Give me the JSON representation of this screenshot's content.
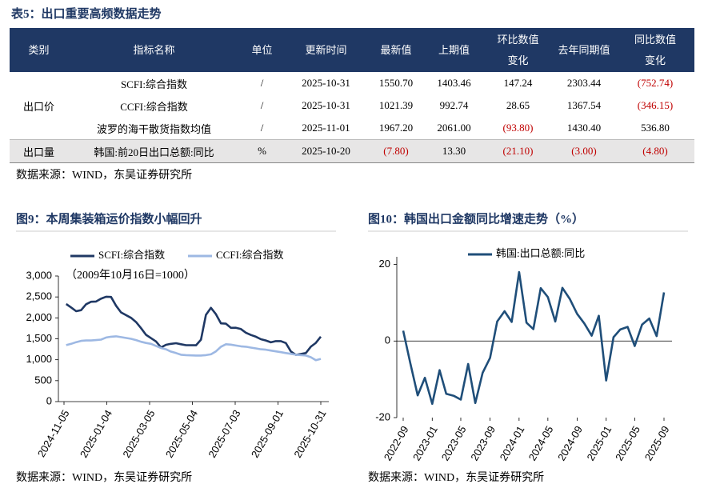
{
  "table": {
    "title": "表5：出口重要高频数据走势",
    "header": [
      "类别",
      "指标名称",
      "单位",
      "更新时间",
      "最新值",
      "上期值",
      [
        "环比数值",
        "变化"
      ],
      "去年同期值",
      [
        "同比数值",
        "变化"
      ]
    ],
    "groups": [
      {
        "category": "出口价",
        "rows": [
          [
            "SCFI:综合指数",
            "/",
            "2025-10-31",
            "1550.70",
            "1403.46",
            "147.24",
            "2303.44",
            "(752.74)"
          ],
          [
            "CCFI:综合指数",
            "/",
            "2025-10-31",
            "1021.39",
            "992.74",
            "28.65",
            "1367.54",
            "(346.15)"
          ],
          [
            "波罗的海干散货指数均值",
            "/",
            "2025-11-01",
            "1967.20",
            "2061.00",
            "(93.80)",
            "1430.40",
            "536.80"
          ]
        ]
      },
      {
        "category": "出口量",
        "rows": [
          [
            "韩国:前20日出口总额:同比",
            "%",
            "2025-10-20",
            "(7.80)",
            "13.30",
            "(21.10)",
            "(3.00)",
            "(4.80)"
          ]
        ]
      }
    ],
    "source": "数据来源：WIND，东吴证券研究所"
  },
  "chart_data": [
    {
      "type": "line",
      "title": "图9：本周集装箱运价指数小幅回升",
      "annotation": "（2009年10月16日=1000）",
      "x": [
        "2024-11-08",
        "2024-11-15",
        "2024-11-22",
        "2024-11-29",
        "2024-12-06",
        "2024-12-13",
        "2024-12-20",
        "2024-12-27",
        "2025-01-03",
        "2025-01-10",
        "2025-01-17",
        "2025-01-24",
        "2025-02-07",
        "2025-02-14",
        "2025-02-21",
        "2025-02-28",
        "2025-03-07",
        "2025-03-14",
        "2025-03-21",
        "2025-03-28",
        "2025-04-03",
        "2025-04-11",
        "2025-04-18",
        "2025-04-25",
        "2025-05-09",
        "2025-05-16",
        "2025-05-23",
        "2025-05-30",
        "2025-06-06",
        "2025-06-13",
        "2025-06-20",
        "2025-06-27",
        "2025-07-04",
        "2025-07-11",
        "2025-07-18",
        "2025-07-25",
        "2025-08-01",
        "2025-08-08",
        "2025-08-15",
        "2025-08-22",
        "2025-08-29",
        "2025-09-05",
        "2025-09-12",
        "2025-09-19",
        "2025-09-26",
        "2025-10-10",
        "2025-10-17",
        "2025-10-24",
        "2025-10-31"
      ],
      "series": [
        {
          "name": "SCFI:综合指数",
          "color": "#1f3864",
          "values": [
            2331,
            2250,
            2160,
            2185,
            2326,
            2385,
            2390,
            2460,
            2505,
            2500,
            2290,
            2130,
            2000,
            1900,
            1755,
            1595,
            1515,
            1436,
            1293,
            1357,
            1378,
            1395,
            1370,
            1348,
            1346,
            1479,
            2072,
            2240,
            2088,
            1869,
            1861,
            1762,
            1763,
            1734,
            1646,
            1592,
            1550,
            1490,
            1460,
            1416,
            1445,
            1444,
            1398,
            1198,
            1115,
            1160,
            1310,
            1403,
            1551
          ]
        },
        {
          "name": "CCFI:综合指数",
          "color": "#9db8e3",
          "values": [
            1350,
            1380,
            1420,
            1450,
            1460,
            1460,
            1470,
            1480,
            1530,
            1550,
            1560,
            1540,
            1500,
            1470,
            1430,
            1400,
            1380,
            1330,
            1280,
            1250,
            1200,
            1160,
            1120,
            1110,
            1100,
            1100,
            1110,
            1130,
            1200,
            1310,
            1370,
            1360,
            1340,
            1320,
            1310,
            1290,
            1270,
            1250,
            1240,
            1220,
            1200,
            1180,
            1160,
            1140,
            1120,
            1100,
            1060,
            990,
            1021
          ]
        }
      ],
      "xlim": [
        "2024-11-05",
        "2025-10-31"
      ],
      "xticks": [
        "2024-11-05",
        "2025-01-04",
        "2025-03-05",
        "2025-05-04",
        "2025-07-03",
        "2025-09-01",
        "2025-10-31"
      ],
      "ylim": [
        0,
        3000
      ],
      "yticks": [
        0,
        500,
        {
          "value": 1000,
          "label": "1,000"
        },
        {
          "value": 1500,
          "label": "1,500"
        },
        {
          "value": 2000,
          "label": "2,000"
        },
        {
          "value": 2500,
          "label": "2,500"
        },
        {
          "value": 3000,
          "label": "3,000"
        }
      ],
      "legend": "top",
      "source": "数据来源：WIND，东吴证券研究所"
    },
    {
      "type": "line",
      "title": "图10：韩国出口金额同比增速走势（%）",
      "x": [
        "2022-09",
        "2022-10",
        "2022-11",
        "2022-12",
        "2023-01",
        "2023-02",
        "2023-03",
        "2023-04",
        "2023-05",
        "2023-06",
        "2023-07",
        "2023-08",
        "2023-09",
        "2023-10",
        "2023-11",
        "2023-12",
        "2024-01",
        "2024-02",
        "2024-03",
        "2024-04",
        "2024-05",
        "2024-06",
        "2024-07",
        "2024-08",
        "2024-09",
        "2024-10",
        "2024-11",
        "2024-12",
        "2025-01",
        "2025-02",
        "2025-03",
        "2025-04",
        "2025-05",
        "2025-06",
        "2025-07",
        "2025-08",
        "2025-09"
      ],
      "series": [
        {
          "name": "韩国:出口总额:同比",
          "color": "#1f4e79",
          "values": [
            2.7,
            -5.8,
            -14.2,
            -9.6,
            -16.4,
            -7.6,
            -13.8,
            -14.3,
            -15.3,
            -6.0,
            -16.2,
            -8.3,
            -4.4,
            5.1,
            7.8,
            5.0,
            18.0,
            4.8,
            3.1,
            13.8,
            11.5,
            5.1,
            13.9,
            11.0,
            7.1,
            4.6,
            1.4,
            6.6,
            -10.3,
            1.0,
            3.0,
            3.7,
            -1.3,
            4.3,
            5.9,
            1.3,
            12.7
          ]
        }
      ],
      "xlim": [
        "2022-09",
        "2025-09"
      ],
      "xticks": [
        "2022-09",
        "2023-01",
        "2023-05",
        "2023-09",
        "2024-01",
        "2024-05",
        "2024-09",
        "2025-01",
        "2025-05",
        "2025-09"
      ],
      "ylim": [
        -20,
        22
      ],
      "yticks": [
        -20,
        0,
        20
      ],
      "legend": "top",
      "source": "数据来源：WIND，东吴证券研究所"
    }
  ]
}
